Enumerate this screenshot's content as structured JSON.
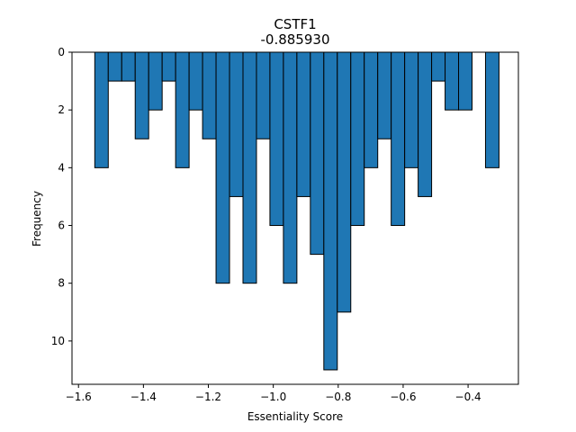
{
  "chart_data": {
    "type": "bar",
    "title": "CSTF1",
    "subtitle": "-0.885930",
    "xlabel": "Essentiality Score",
    "ylabel": "Frequency",
    "xlim": [
      -1.62,
      -0.245
    ],
    "ylim": [
      11.5,
      0
    ],
    "y_inverted": true,
    "grid": false,
    "bar_color": "#1f77b4",
    "edge_color": "#000000",
    "x_ticks": [
      -1.6,
      -1.4,
      -1.2,
      -1.0,
      -0.8,
      -0.6,
      -0.4
    ],
    "x_tick_labels": [
      "−1.6",
      "−1.4",
      "−1.2",
      "−1.0",
      "−0.8",
      "−0.6",
      "−0.4"
    ],
    "y_ticks": [
      0,
      2,
      4,
      6,
      8,
      10
    ],
    "y_tick_labels": [
      "0",
      "2",
      "4",
      "6",
      "8",
      "10"
    ],
    "bins": [
      {
        "x0": -1.5498,
        "x1": -1.5083,
        "value": 4
      },
      {
        "x0": -1.5083,
        "x1": -1.4668,
        "value": 1
      },
      {
        "x0": -1.4668,
        "x1": -1.4253,
        "value": 1
      },
      {
        "x0": -1.4253,
        "x1": -1.3838,
        "value": 3
      },
      {
        "x0": -1.3838,
        "x1": -1.3423,
        "value": 2
      },
      {
        "x0": -1.3423,
        "x1": -1.3008,
        "value": 1
      },
      {
        "x0": -1.3008,
        "x1": -1.2593,
        "value": 4
      },
      {
        "x0": -1.2593,
        "x1": -1.2178,
        "value": 2
      },
      {
        "x0": -1.2178,
        "x1": -1.1763,
        "value": 3
      },
      {
        "x0": -1.1763,
        "x1": -1.1348,
        "value": 8
      },
      {
        "x0": -1.1348,
        "x1": -1.0933,
        "value": 5
      },
      {
        "x0": -1.0933,
        "x1": -1.0518,
        "value": 8
      },
      {
        "x0": -1.0518,
        "x1": -1.0103,
        "value": 3
      },
      {
        "x0": -1.0103,
        "x1": -0.9688,
        "value": 6
      },
      {
        "x0": -0.9688,
        "x1": -0.9273,
        "value": 8
      },
      {
        "x0": -0.9273,
        "x1": -0.8858,
        "value": 5
      },
      {
        "x0": -0.8858,
        "x1": -0.8443,
        "value": 7
      },
      {
        "x0": -0.8443,
        "x1": -0.8028,
        "value": 11
      },
      {
        "x0": -0.8028,
        "x1": -0.7613,
        "value": 9
      },
      {
        "x0": -0.7613,
        "x1": -0.7198,
        "value": 6
      },
      {
        "x0": -0.7198,
        "x1": -0.6783,
        "value": 4
      },
      {
        "x0": -0.6783,
        "x1": -0.6368,
        "value": 3
      },
      {
        "x0": -0.6368,
        "x1": -0.5953,
        "value": 6
      },
      {
        "x0": -0.5953,
        "x1": -0.5538,
        "value": 4
      },
      {
        "x0": -0.5538,
        "x1": -0.5123,
        "value": 5
      },
      {
        "x0": -0.5123,
        "x1": -0.4708,
        "value": 1
      },
      {
        "x0": -0.4708,
        "x1": -0.4293,
        "value": 2
      },
      {
        "x0": -0.4293,
        "x1": -0.3878,
        "value": 2
      },
      {
        "x0": -0.3878,
        "x1": -0.3463,
        "value": 0
      },
      {
        "x0": -0.3463,
        "x1": -0.3048,
        "value": 4
      }
    ]
  }
}
